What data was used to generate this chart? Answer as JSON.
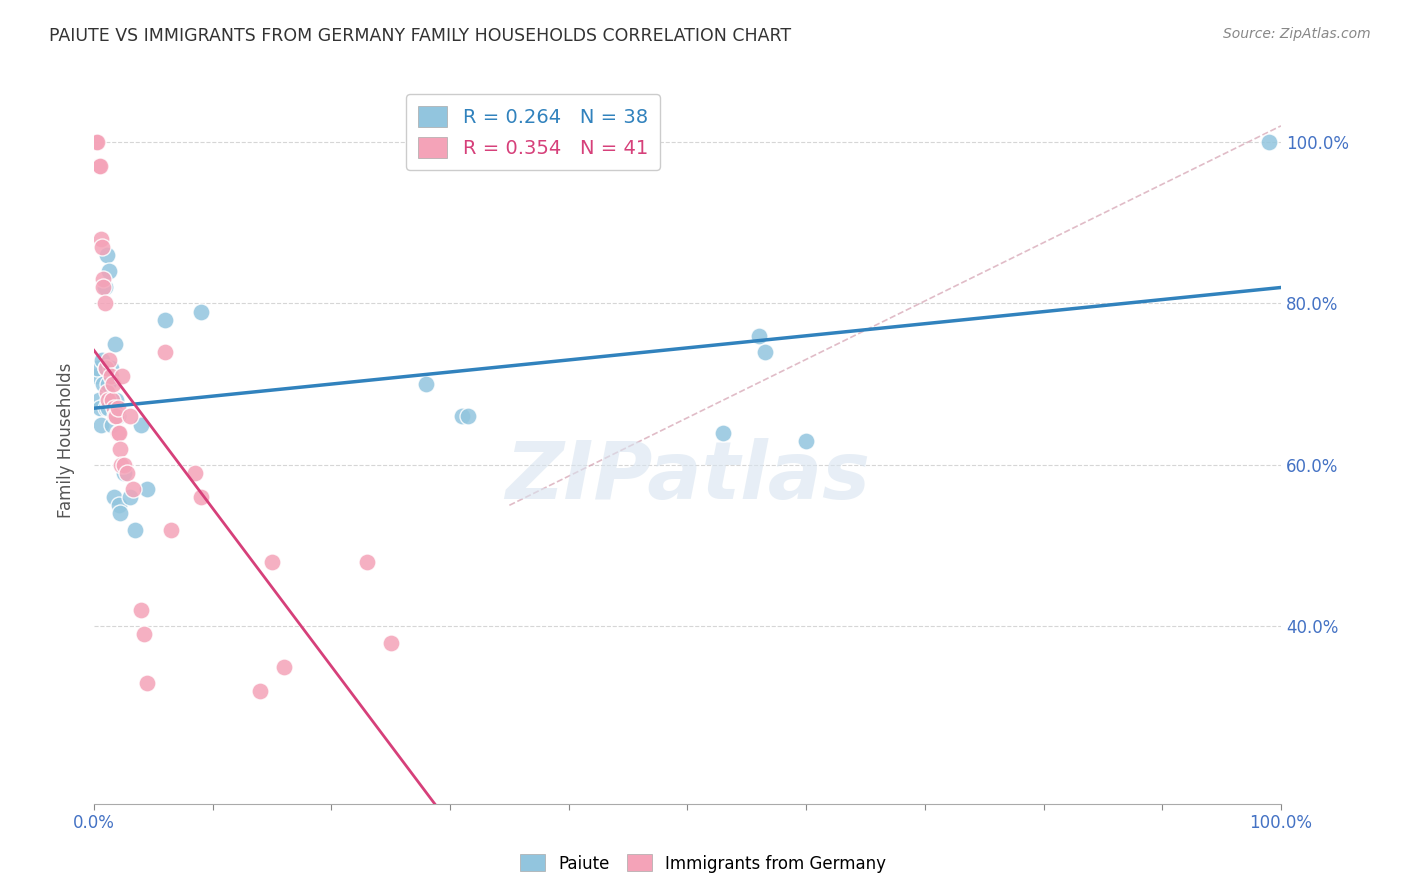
{
  "title": "PAIUTE VS IMMIGRANTS FROM GERMANY FAMILY HOUSEHOLDS CORRELATION CHART",
  "source": "Source: ZipAtlas.com",
  "ylabel": "Family Households",
  "blue_R": 0.264,
  "blue_N": 38,
  "pink_R": 0.354,
  "pink_N": 41,
  "blue_color": "#92c5de",
  "blue_line_color": "#3182bd",
  "pink_color": "#f4a3b8",
  "pink_line_color": "#d6407a",
  "dashed_line_color": "#d4a0b0",
  "watermark": "ZIPatlas",
  "blue_x": [
    0.002,
    0.003,
    0.004,
    0.005,
    0.006,
    0.007,
    0.008,
    0.009,
    0.01,
    0.01,
    0.011,
    0.012,
    0.012,
    0.013,
    0.014,
    0.015,
    0.016,
    0.017,
    0.018,
    0.019,
    0.02,
    0.021,
    0.022,
    0.025,
    0.03,
    0.035,
    0.04,
    0.045,
    0.06,
    0.09,
    0.28,
    0.31,
    0.315,
    0.53,
    0.56,
    0.565,
    0.6,
    0.99
  ],
  "blue_y": [
    0.71,
    0.72,
    0.68,
    0.67,
    0.65,
    0.73,
    0.7,
    0.82,
    0.72,
    0.67,
    0.86,
    0.7,
    0.67,
    0.84,
    0.72,
    0.65,
    0.68,
    0.56,
    0.75,
    0.68,
    0.66,
    0.55,
    0.54,
    0.59,
    0.56,
    0.52,
    0.65,
    0.57,
    0.78,
    0.79,
    0.7,
    0.66,
    0.66,
    0.64,
    0.76,
    0.74,
    0.63,
    1.0
  ],
  "pink_x": [
    0.002,
    0.003,
    0.004,
    0.005,
    0.006,
    0.007,
    0.008,
    0.008,
    0.009,
    0.01,
    0.011,
    0.012,
    0.013,
    0.014,
    0.015,
    0.016,
    0.017,
    0.018,
    0.019,
    0.02,
    0.02,
    0.021,
    0.022,
    0.023,
    0.024,
    0.025,
    0.028,
    0.03,
    0.033,
    0.04,
    0.042,
    0.045,
    0.06,
    0.065,
    0.085,
    0.09,
    0.14,
    0.15,
    0.16,
    0.23,
    0.25
  ],
  "pink_y": [
    1.0,
    1.0,
    0.97,
    0.97,
    0.88,
    0.87,
    0.83,
    0.82,
    0.8,
    0.72,
    0.69,
    0.68,
    0.73,
    0.71,
    0.68,
    0.7,
    0.67,
    0.66,
    0.66,
    0.67,
    0.64,
    0.64,
    0.62,
    0.6,
    0.71,
    0.6,
    0.59,
    0.66,
    0.57,
    0.42,
    0.39,
    0.33,
    0.74,
    0.52,
    0.59,
    0.56,
    0.32,
    0.48,
    0.35,
    0.48,
    0.38
  ]
}
